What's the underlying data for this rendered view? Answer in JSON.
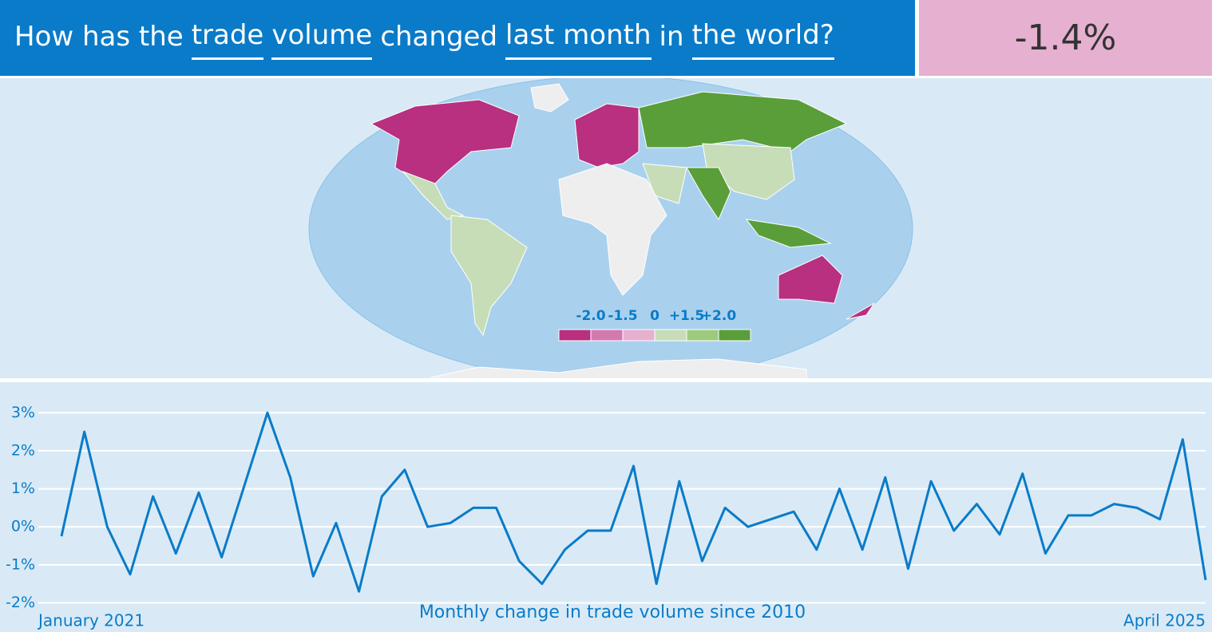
{
  "header": {
    "words": [
      "How has the",
      "trade",
      "volume",
      "changed",
      "last month",
      "in",
      "the world?"
    ],
    "selectable": [
      false,
      true,
      true,
      false,
      true,
      false,
      true
    ]
  },
  "result": "-1.4%",
  "map_legend": {
    "labels": [
      "-2.0",
      "-1.5",
      "0",
      "+1.5",
      "+2.0"
    ],
    "colors": [
      "#b8307f",
      "#d27ab0",
      "#e6b0d0",
      "#c7ddb8",
      "#9ccb7d",
      "#5a9e3a"
    ]
  },
  "chart_data": {
    "type": "line",
    "title": "Monthly change in trade volume since 2010",
    "categories": [
      "January 2021",
      null,
      null,
      null,
      null,
      null,
      null,
      null,
      null,
      null,
      null,
      null,
      null,
      null,
      null,
      null,
      null,
      null,
      null,
      null,
      null,
      null,
      null,
      null,
      null,
      null,
      null,
      null,
      null,
      null,
      null,
      null,
      null,
      null,
      null,
      null,
      null,
      null,
      null,
      null,
      null,
      null,
      null,
      null,
      null,
      null,
      null,
      null,
      null,
      null,
      "April 2025"
    ],
    "series": [
      {
        "name": "Monthly change",
        "color": "#0a7bc8",
        "values": [
          -0.25,
          2.5,
          0.0,
          -1.25,
          0.8,
          -0.7,
          0.9,
          -0.8,
          1.1,
          3.0,
          1.3,
          -1.3,
          0.1,
          -1.7,
          0.8,
          1.5,
          0.0,
          0.1,
          0.5,
          0.5,
          -0.9,
          -1.5,
          -0.6,
          -0.1,
          -0.1,
          1.6,
          -1.5,
          1.2,
          -0.9,
          0.5,
          0.0,
          0.2,
          0.4,
          -0.6,
          1.0,
          -0.6,
          1.3,
          -1.1,
          1.2,
          -0.1,
          0.6,
          -0.2,
          1.4,
          -0.7,
          0.3,
          0.3,
          0.6,
          0.5,
          0.2,
          2.3,
          -1.4
        ]
      }
    ],
    "ylim": [
      -2.2,
      3.3
    ],
    "yticks": [
      {
        "value": -2,
        "label": "-2%"
      },
      {
        "value": -1,
        "label": "-1%"
      },
      {
        "value": 0,
        "label": "0%"
      },
      {
        "value": 1,
        "label": "1%"
      },
      {
        "value": 2,
        "label": "2%"
      },
      {
        "value": 3,
        "label": "3%"
      }
    ],
    "grid": true
  }
}
